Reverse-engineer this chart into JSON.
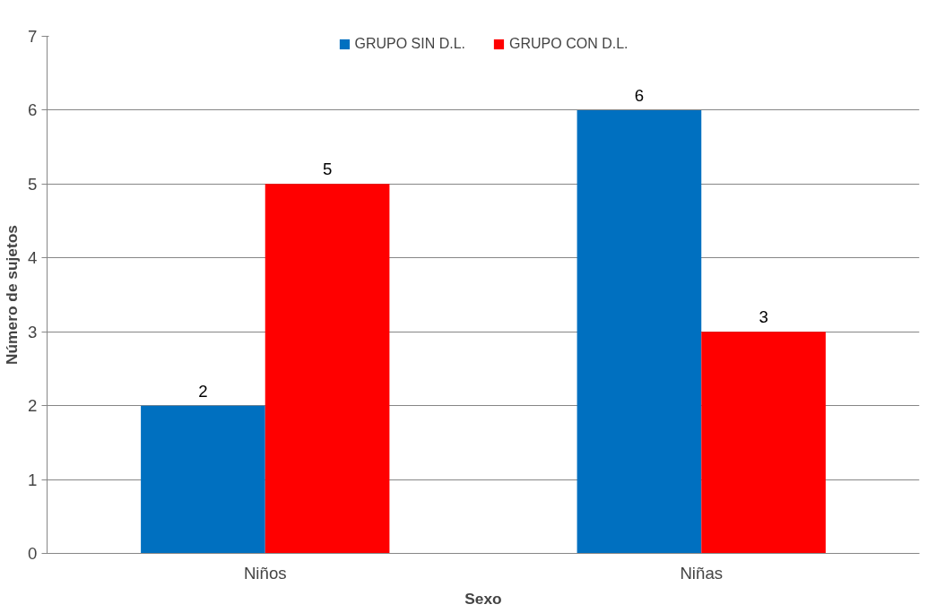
{
  "chart_data": {
    "type": "bar",
    "xlabel": "Sexo",
    "ylabel": "Número de sujetos",
    "categories": [
      "Niños",
      "Niñas"
    ],
    "series": [
      {
        "name": "GRUPO SIN D.L.",
        "color": "#0070c0",
        "values": [
          2,
          6
        ]
      },
      {
        "name": "GRUPO CON D.L.",
        "color": "#ff0000",
        "values": [
          5,
          3
        ]
      }
    ],
    "ylim": [
      0,
      7
    ],
    "yticks": [
      0,
      1,
      2,
      3,
      4,
      5,
      6,
      7
    ],
    "grid": "y",
    "legend": "top",
    "data_labels": true
  }
}
